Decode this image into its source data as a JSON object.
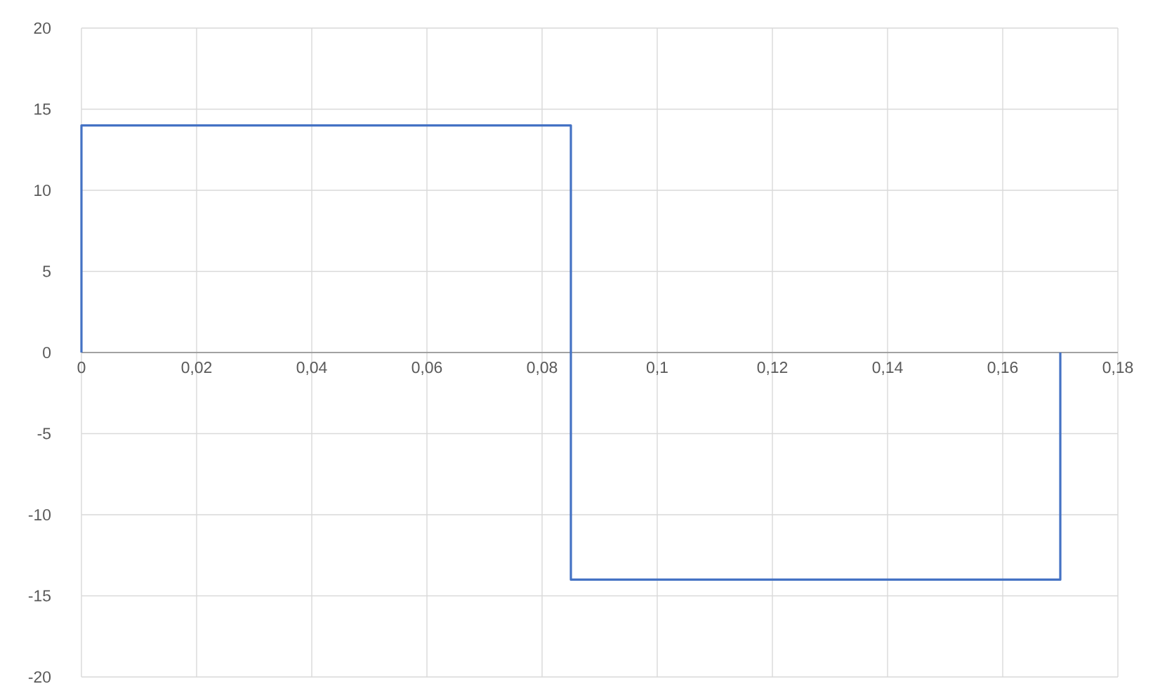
{
  "chart_data": {
    "type": "line",
    "x": [
      0,
      0,
      0.085,
      0.085,
      0.17,
      0.17
    ],
    "series": [
      {
        "color": "#4472c4",
        "values": [
          0,
          14,
          14,
          -14,
          -14,
          0
        ]
      }
    ],
    "xlim": [
      0,
      0.18
    ],
    "xticks": [
      0,
      {
        "value": 0.02,
        "label": "0,02"
      },
      {
        "value": 0.04,
        "label": "0,04"
      },
      {
        "value": 0.06,
        "label": "0,06"
      },
      {
        "value": 0.08,
        "label": "0,08"
      },
      {
        "value": 0.1,
        "label": "0,1"
      },
      {
        "value": 0.12,
        "label": "0,12"
      },
      {
        "value": 0.14,
        "label": "0,14"
      },
      {
        "value": 0.16,
        "label": "0,16"
      },
      {
        "value": 0.18,
        "label": "0,18"
      }
    ],
    "ylim": [
      -20,
      20
    ],
    "yticks": [
      -20,
      -15,
      -10,
      -5,
      0,
      5,
      10,
      15,
      20
    ],
    "grid": true,
    "marker": "none",
    "line_style": "solid"
  }
}
